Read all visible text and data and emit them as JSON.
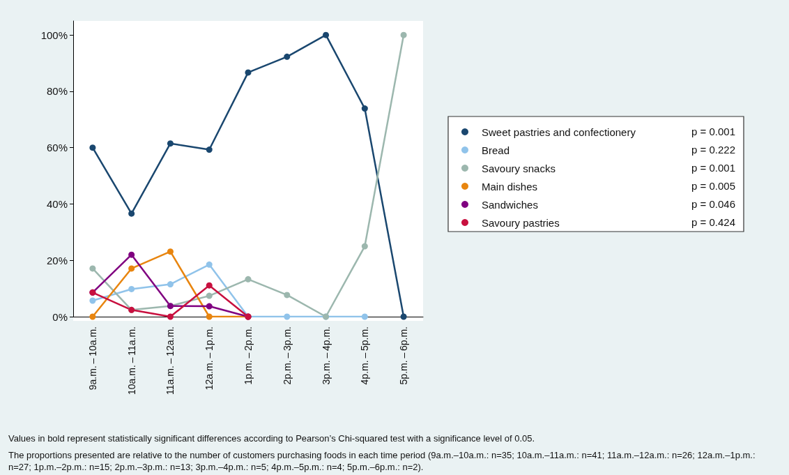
{
  "chart_data": {
    "type": "line",
    "categories": [
      "9a.m. – 10a.m.",
      "10a.m. – 11a.m.",
      "11a.m. – 12a.m.",
      "12a.m. – 1p.m.",
      "1p.m. – 2p.m.",
      "2p.m. – 3p.m.",
      "3p.m. – 4p.m.",
      "4p.m. – 5p.m.",
      "5p.m. – 6p.m."
    ],
    "series": [
      {
        "name": "Sweet pastries and confectionery",
        "color": "#1a476f",
        "values": [
          60,
          36.6,
          61.5,
          59.3,
          86.7,
          92.3,
          100,
          73.9,
          0
        ]
      },
      {
        "name": "Bread",
        "color": "#90c3ea",
        "values": [
          5.7,
          9.8,
          11.5,
          18.5,
          0,
          0,
          0,
          0,
          null
        ]
      },
      {
        "name": "Savoury snacks",
        "color": "#9cb7ae",
        "values": [
          17.1,
          2.4,
          3.8,
          7.4,
          13.3,
          7.7,
          0,
          25,
          100
        ]
      },
      {
        "name": "Main dishes",
        "color": "#e8850f",
        "values": [
          0,
          17.1,
          23.1,
          0,
          0,
          null,
          null,
          null,
          null
        ]
      },
      {
        "name": "Sandwiches",
        "color": "#800080",
        "values": [
          8.6,
          22,
          3.8,
          3.7,
          0,
          null,
          null,
          null,
          null
        ]
      },
      {
        "name": "Savoury pastries",
        "color": "#c8103f",
        "values": [
          8.6,
          2.4,
          0,
          11.1,
          0,
          null,
          null,
          null,
          null
        ]
      }
    ],
    "ylim": [
      0,
      105
    ],
    "yticks": [
      {
        "value": 0,
        "label": "0%"
      },
      {
        "value": 20,
        "label": "20%"
      },
      {
        "value": 40,
        "label": "40%"
      },
      {
        "value": 60,
        "label": "60%"
      },
      {
        "value": 80,
        "label": "80%"
      },
      {
        "value": 100,
        "label": "100%"
      }
    ],
    "grid": false,
    "legend": "right",
    "marker": "circle",
    "line_style": "solid",
    "annotations": [
      "p = 0.001",
      "p = 0.222",
      "p = 0.001",
      "p = 0.005",
      "p = 0.046",
      "p = 0.424",
      "Values in bold represent statistically significant differences according to Pearson’s Chi-squared test with a significance level of 0.05.",
      "The proportions presented are relative to the number of customers purchasing foods in each time period (9a.m.–10a.m.: n=35; 10a.m.–11a.m.: n=41; 11a.m.–12a.m.: n=26; 12a.m.–1p.m.: n=27; 1p.m.–2p.m.: n=15; 2p.m.–3p.m.: n=13; 3p.m.–4p.m.: n=5; 4p.m.–5p.m.: n=4; 5p.m.–6p.m.: n=2)."
    ]
  }
}
